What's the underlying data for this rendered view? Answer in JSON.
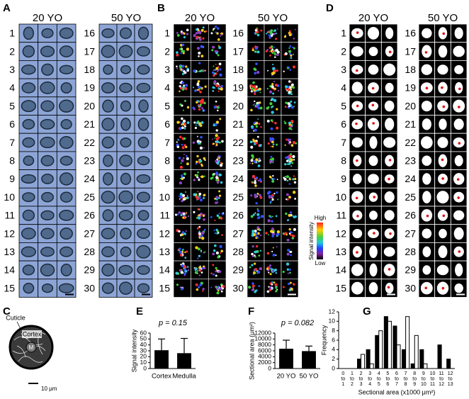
{
  "figure": {
    "panel_a": {
      "label": "A",
      "groups": [
        {
          "title": "20 YO",
          "rows": [
            1,
            2,
            3,
            4,
            5,
            6,
            7,
            8,
            9,
            10,
            11,
            12,
            13,
            14,
            15
          ]
        },
        {
          "title": "50 YO",
          "rows": [
            16,
            17,
            18,
            19,
            20,
            21,
            22,
            23,
            24,
            25,
            26,
            27,
            28,
            29,
            30
          ]
        }
      ]
    },
    "panel_b": {
      "label": "B",
      "groups": [
        {
          "title": "20 YO",
          "rows": [
            1,
            2,
            3,
            4,
            5,
            6,
            7,
            8,
            9,
            10,
            11,
            12,
            13,
            14,
            15
          ]
        },
        {
          "title": "50 YO",
          "rows": [
            16,
            17,
            18,
            19,
            20,
            21,
            22,
            23,
            24,
            25,
            26,
            27,
            28,
            29,
            30
          ]
        }
      ],
      "colorbar": {
        "title": "Signal intensity",
        "high": "High",
        "low": "Low"
      }
    },
    "panel_c": {
      "label": "C",
      "labels": {
        "cuticle": "Cuticle",
        "cortex": "Cortex",
        "medulla": "M"
      },
      "scale_bar": "10 μm"
    },
    "panel_d": {
      "label": "D",
      "groups": [
        {
          "title": "20 YO",
          "rows": [
            1,
            2,
            3,
            4,
            5,
            6,
            7,
            8,
            9,
            10,
            11,
            12,
            13,
            14,
            15
          ]
        },
        {
          "title": "50 YO",
          "rows": [
            16,
            17,
            18,
            19,
            20,
            21,
            22,
            23,
            24,
            25,
            26,
            27,
            28,
            29,
            30
          ]
        }
      ]
    }
  },
  "chart_data": [
    {
      "type": "bar",
      "label": "E",
      "annotation": "p = 0.15",
      "y_label": "Signal intensity",
      "categories": [
        "Cortex",
        "Medulla"
      ],
      "values": [
        31,
        26
      ],
      "errors": [
        19,
        25
      ],
      "color": "#000000",
      "ylim": [
        0,
        60
      ],
      "yticks": [
        0,
        10,
        20,
        30,
        40,
        50,
        60
      ]
    },
    {
      "type": "bar",
      "label": "F",
      "annotation": "p = 0.082",
      "y_label": "Sectional area (μm²)",
      "categories": [
        "20 YO",
        "50 YO"
      ],
      "values": [
        6700,
        5900
      ],
      "errors": [
        2900,
        1700
      ],
      "color": "#000000",
      "ylim": [
        0,
        12000
      ],
      "yticks": [
        0,
        2000,
        4000,
        6000,
        8000,
        10000,
        12000
      ]
    },
    {
      "type": "bar",
      "label": "G",
      "y_label": "Frequency",
      "x_label": "Sectional area (x1000 μm²)",
      "categories": [
        [
          "0",
          "to",
          "1"
        ],
        [
          "1",
          "to",
          "2"
        ],
        [
          "2",
          "to",
          "3"
        ],
        [
          "3",
          "to",
          "4"
        ],
        [
          "4",
          "to",
          "5"
        ],
        [
          "5",
          "to",
          "6"
        ],
        [
          "6",
          "to",
          "7"
        ],
        [
          "7",
          "to",
          "8"
        ],
        [
          "8",
          "to",
          "9"
        ],
        [
          "9",
          "to",
          "10"
        ],
        [
          "10",
          "to",
          "11"
        ],
        [
          "11",
          "to",
          "12"
        ],
        [
          "12",
          "to",
          "13"
        ]
      ],
      "series": [
        {
          "color": "#000000",
          "values": [
            0,
            0,
            2,
            4,
            7,
            11,
            9,
            4,
            1,
            4,
            0,
            5,
            2
          ]
        },
        {
          "color": "#ffffff",
          "values": [
            0,
            0,
            3,
            1,
            8,
            10,
            5,
            11,
            7,
            1,
            0,
            0,
            0
          ]
        }
      ],
      "ylim": [
        0,
        12
      ],
      "yticks": [
        0,
        2,
        4,
        6,
        8,
        10,
        12
      ]
    }
  ]
}
